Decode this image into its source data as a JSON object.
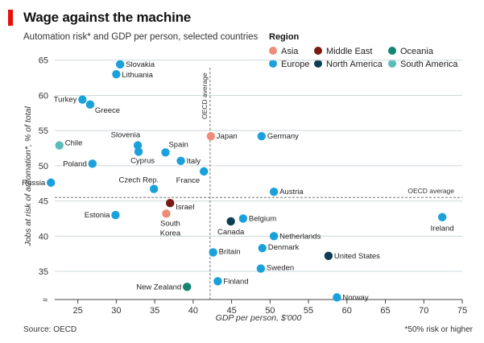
{
  "header": {
    "title": "Wage against the machine",
    "subtitle": "Automation risk* and GDP per person, selected countries"
  },
  "footer": {
    "source": "Source: OECD",
    "footnote": "*50% risk or higher"
  },
  "legend": {
    "title": "Region",
    "items": [
      {
        "label": "Asia",
        "color": "#ef8c7a"
      },
      {
        "label": "Middle East",
        "color": "#7b1a12"
      },
      {
        "label": "Oceania",
        "color": "#158473"
      },
      {
        "label": "Europe",
        "color": "#1aa1dc"
      },
      {
        "label": "North America",
        "color": "#0e3e53"
      },
      {
        "label": "South America",
        "color": "#5bbcbc"
      }
    ]
  },
  "chart_data": {
    "type": "scatter",
    "title": "Wage against the machine",
    "xlabel": "GDP per person, $'000",
    "ylabel": "Jobs at risk of automation*, % of total",
    "xlim": [
      22,
      75
    ],
    "ylim": [
      31,
      66
    ],
    "xticks": [
      25,
      30,
      35,
      40,
      45,
      50,
      55,
      60,
      65,
      70,
      75
    ],
    "yticks": [
      35,
      40,
      45,
      50,
      55,
      60,
      65
    ],
    "grid": true,
    "reference_lines": [
      {
        "label": "OECD average",
        "axis": "x",
        "value": 42.2
      },
      {
        "label": "OECD average",
        "axis": "y",
        "value": 45.5
      }
    ],
    "points": [
      {
        "country": "Slovakia",
        "x": 30.5,
        "y": 64.4,
        "region": "Europe"
      },
      {
        "country": "Lithuania",
        "x": 30.0,
        "y": 63.0,
        "region": "Europe"
      },
      {
        "country": "Turkey",
        "x": 25.6,
        "y": 59.4,
        "region": "Europe"
      },
      {
        "country": "Greece",
        "x": 26.6,
        "y": 58.7,
        "region": "Europe"
      },
      {
        "country": "Slovenia",
        "x": 32.8,
        "y": 52.9,
        "region": "Europe"
      },
      {
        "country": "Cyprus",
        "x": 32.9,
        "y": 52.0,
        "region": "Europe"
      },
      {
        "country": "Chile",
        "x": 22.6,
        "y": 52.9,
        "region": "South America"
      },
      {
        "country": "Spain",
        "x": 36.4,
        "y": 51.9,
        "region": "Europe"
      },
      {
        "country": "Japan",
        "x": 42.3,
        "y": 54.2,
        "region": "Asia"
      },
      {
        "country": "Germany",
        "x": 48.9,
        "y": 54.2,
        "region": "Europe"
      },
      {
        "country": "Poland",
        "x": 26.9,
        "y": 50.3,
        "region": "Europe"
      },
      {
        "country": "Italy",
        "x": 38.4,
        "y": 50.7,
        "region": "Europe"
      },
      {
        "country": "France",
        "x": 41.4,
        "y": 49.2,
        "region": "Europe"
      },
      {
        "country": "Russia",
        "x": 21.5,
        "y": 47.6,
        "region": "Europe"
      },
      {
        "country": "Czech Rep.",
        "x": 34.9,
        "y": 46.7,
        "region": "Europe"
      },
      {
        "country": "Austria",
        "x": 50.5,
        "y": 46.3,
        "region": "Europe"
      },
      {
        "country": "Israel",
        "x": 37.0,
        "y": 44.7,
        "region": "Middle East"
      },
      {
        "country": "South Korea",
        "x": 36.5,
        "y": 43.2,
        "region": "Asia"
      },
      {
        "country": "Estonia",
        "x": 29.9,
        "y": 43.0,
        "region": "Europe"
      },
      {
        "country": "Canada",
        "x": 44.9,
        "y": 42.1,
        "region": "North America"
      },
      {
        "country": "Belgium",
        "x": 46.5,
        "y": 42.5,
        "region": "Europe"
      },
      {
        "country": "Ireland",
        "x": 72.4,
        "y": 42.7,
        "region": "Europe"
      },
      {
        "country": "Netherlands",
        "x": 50.5,
        "y": 40.0,
        "region": "Europe"
      },
      {
        "country": "Denmark",
        "x": 49.0,
        "y": 38.3,
        "region": "Europe"
      },
      {
        "country": "Britain",
        "x": 42.6,
        "y": 37.7,
        "region": "Europe"
      },
      {
        "country": "United States",
        "x": 57.6,
        "y": 37.2,
        "region": "North America"
      },
      {
        "country": "Sweden",
        "x": 48.8,
        "y": 35.4,
        "region": "Europe"
      },
      {
        "country": "Finland",
        "x": 43.2,
        "y": 33.6,
        "region": "Europe"
      },
      {
        "country": "New Zealand",
        "x": 39.2,
        "y": 32.8,
        "region": "Oceania"
      },
      {
        "country": "Norway",
        "x": 58.7,
        "y": 31.3,
        "region": "Europe"
      }
    ]
  }
}
